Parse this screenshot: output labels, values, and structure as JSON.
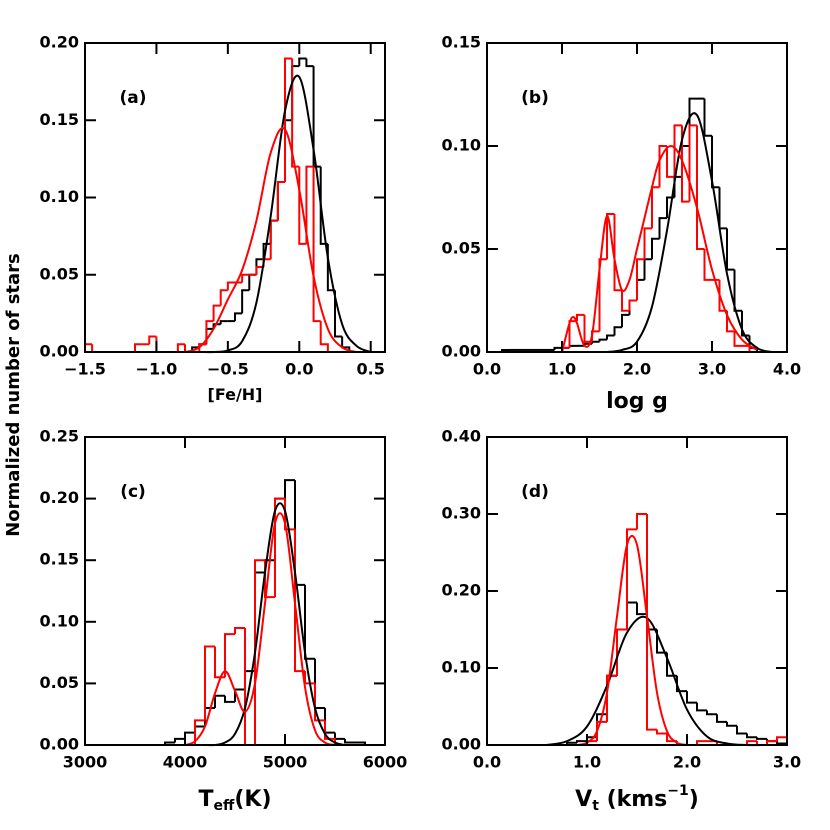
{
  "ylabel": "Normalized number of stars",
  "chart_data": [
    {
      "type": "histogram",
      "annotation": "(a)",
      "xlabel": [
        {
          "text": "[Fe/H]"
        }
      ],
      "xlim": [
        -1.5,
        0.6
      ],
      "ylim": [
        0,
        0.2
      ],
      "xticks": [
        {
          "value": -1.5,
          "label": "−1.5"
        },
        {
          "value": -1,
          "label": "−1.0"
        },
        {
          "value": -0.5,
          "label": "−0.5"
        },
        {
          "value": 0,
          "label": "0.0"
        },
        0.5
      ],
      "yticks": [
        {
          "value": 0,
          "label": "0.00"
        },
        0.05,
        {
          "value": 0.1,
          "label": "0.10"
        },
        0.15,
        {
          "value": 0.2,
          "label": "0.20"
        }
      ],
      "histograms": [
        {
          "color": "#000000",
          "bins": [
            -0.75,
            -0.7,
            -0.65,
            -0.6,
            -0.55,
            -0.5,
            -0.45,
            -0.4,
            -0.35,
            -0.3,
            -0.25,
            -0.2,
            -0.15,
            -0.1,
            -0.05,
            0,
            0.05,
            0.1,
            0.15,
            0.2,
            0.25,
            0.3,
            0.35
          ],
          "values": [
            0.003,
            0.005,
            0.015,
            0.018,
            0.02,
            0.02,
            0.025,
            0.04,
            0.05,
            0.06,
            0.07,
            0.085,
            0.11,
            0.15,
            0.185,
            0.19,
            0.185,
            0.12,
            0.07,
            0.04,
            0.01,
            0.003
          ]
        },
        {
          "color": "#ff0000",
          "bins": [
            -1.5,
            -1.45,
            -1.4,
            -1.35,
            -1.3,
            -1.25,
            -1.2,
            -1.15,
            -1.1,
            -1.05,
            -1,
            -0.95,
            -0.9,
            -0.85,
            -0.8,
            -0.75,
            -0.7,
            -0.65,
            -0.6,
            -0.55,
            -0.5,
            -0.45,
            -0.4,
            -0.35,
            -0.3,
            -0.25,
            -0.2,
            -0.15,
            -0.1,
            -0.05,
            0,
            0.05,
            0.1,
            0.15,
            0.2
          ],
          "values": [
            0.005,
            0,
            0,
            0,
            0,
            0,
            0,
            0.005,
            0.005,
            0.01,
            0,
            0,
            0,
            0.005,
            0,
            0,
            0.005,
            0.02,
            0.03,
            0.04,
            0.045,
            0.045,
            0.05,
            0.05,
            0.055,
            0.06,
            0.085,
            0.11,
            0.19,
            0.12,
            0.07,
            0.12,
            0.02,
            0.005
          ]
        }
      ],
      "curves": [
        {
          "color": "#000000",
          "x": [
            -0.8,
            -0.7,
            -0.6,
            -0.5,
            -0.4,
            -0.3,
            -0.2,
            -0.1,
            0,
            0.1,
            0.2,
            0.3,
            0.4,
            0.5
          ],
          "values": [
            0,
            0,
            0,
            0.001,
            0.007,
            0.032,
            0.088,
            0.156,
            0.178,
            0.131,
            0.061,
            0.018,
            0.004,
            0
          ]
        },
        {
          "color": "#ff0000",
          "x": [
            -0.8,
            -0.7,
            -0.6,
            -0.5,
            -0.4,
            -0.3,
            -0.2,
            -0.1,
            0,
            0.1,
            0.2,
            0.3,
            0.4
          ],
          "values": [
            0,
            0.003,
            0.015,
            0.034,
            0.053,
            0.085,
            0.129,
            0.144,
            0.105,
            0.049,
            0.015,
            0.003,
            0
          ]
        }
      ]
    },
    {
      "type": "histogram",
      "annotation": "(b)",
      "xlabel": [
        {
          "text": "log g"
        }
      ],
      "xlim": [
        0,
        4
      ],
      "ylim": [
        0,
        0.15
      ],
      "xticks": [
        {
          "value": 0,
          "label": "0.0"
        },
        {
          "value": 1,
          "label": "1.0"
        },
        {
          "value": 2,
          "label": "2.0"
        },
        {
          "value": 3,
          "label": "3.0"
        },
        {
          "value": 4,
          "label": "4.0"
        }
      ],
      "yticks": [
        {
          "value": 0,
          "label": "0.00"
        },
        0.05,
        {
          "value": 0.1,
          "label": "0.10"
        },
        0.15
      ],
      "histograms": [
        {
          "color": "#000000",
          "bins": [
            0.2,
            0.3,
            0.4,
            0.5,
            0.6,
            0.7,
            0.8,
            0.9,
            1,
            1.1,
            1.2,
            1.3,
            1.4,
            1.5,
            1.6,
            1.7,
            1.8,
            1.9,
            2,
            2.1,
            2.2,
            2.3,
            2.4,
            2.5,
            2.6,
            2.7,
            2.8,
            2.9,
            3,
            3.1,
            3.2,
            3.3,
            3.4,
            3.5,
            3.6
          ],
          "values": [
            0.001,
            0.001,
            0.001,
            0.001,
            0.001,
            0.001,
            0.001,
            0.002,
            0.002,
            0.003,
            0.003,
            0.004,
            0.005,
            0.006,
            0.008,
            0.012,
            0.018,
            0.025,
            0.035,
            0.045,
            0.055,
            0.065,
            0.075,
            0.085,
            0.1,
            0.123,
            0.123,
            0.105,
            0.08,
            0.06,
            0.04,
            0.02,
            0.008,
            0.002
          ]
        },
        {
          "color": "#ff0000",
          "bins": [
            1,
            1.1,
            1.2,
            1.3,
            1.4,
            1.5,
            1.6,
            1.7,
            1.8,
            1.9,
            2,
            2.1,
            2.2,
            2.3,
            2.4,
            2.5,
            2.6,
            2.7,
            2.8,
            2.9,
            3,
            3.1,
            3.2,
            3.3,
            3.4,
            3.5
          ],
          "values": [
            0.002,
            0.015,
            0.018,
            0.005,
            0.01,
            0.045,
            0.067,
            0.03,
            0.02,
            0.025,
            0.045,
            0.06,
            0.08,
            0.1,
            0.085,
            0.11,
            0.073,
            0.11,
            0.05,
            0.035,
            0.035,
            0.02,
            0.01,
            0.003,
            0.003
          ]
        }
      ],
      "curves": [
        {
          "color": "#000000",
          "x": [
            1.6,
            1.8,
            2,
            2.2,
            2.4,
            2.6,
            2.8,
            3,
            3.2,
            3.4,
            3.6,
            3.8
          ],
          "values": [
            0,
            0.001,
            0.005,
            0.022,
            0.059,
            0.103,
            0.115,
            0.083,
            0.038,
            0.011,
            0.002,
            0
          ]
        },
        {
          "color": "#ff0000",
          "x": [
            1,
            1.1,
            1.15,
            1.2,
            1.3,
            1.4,
            1.5,
            1.6,
            1.7,
            1.8,
            1.9,
            2,
            2.1,
            2.2,
            2.3,
            2.45,
            2.6,
            2.8,
            3,
            3.2,
            3.4,
            3.6
          ],
          "values": [
            0,
            0.014,
            0.017,
            0.014,
            0.003,
            0.008,
            0.04,
            0.066,
            0.045,
            0.03,
            0.035,
            0.05,
            0.065,
            0.08,
            0.093,
            0.1,
            0.093,
            0.07,
            0.04,
            0.018,
            0.006,
            0.001
          ]
        }
      ]
    },
    {
      "type": "histogram",
      "annotation": "(c)",
      "xlabel": [
        {
          "text": "T"
        },
        {
          "text": "eff",
          "shift": "sub"
        },
        {
          "text": "(K)"
        }
      ],
      "xlim": [
        3000,
        6000
      ],
      "ylim": [
        0,
        0.25
      ],
      "xticks": [
        3000,
        4000,
        5000,
        6000
      ],
      "yticks": [
        {
          "value": 0,
          "label": "0.00"
        },
        0.05,
        {
          "value": 0.1,
          "label": "0.10"
        },
        0.15,
        {
          "value": 0.2,
          "label": "0.20"
        },
        0.25
      ],
      "histograms": [
        {
          "color": "#000000",
          "bins": [
            3800,
            3900,
            4000,
            4100,
            4200,
            4300,
            4400,
            4500,
            4600,
            4700,
            4800,
            4900,
            5000,
            5100,
            5200,
            5300,
            5400,
            5500,
            5600,
            5700,
            5800
          ],
          "values": [
            0.002,
            0.005,
            0.01,
            0.015,
            0.03,
            0.04,
            0.035,
            0.045,
            0.06,
            0.14,
            0.15,
            0.2,
            0.215,
            0.13,
            0.07,
            0.03,
            0.01,
            0.005,
            0.002,
            0.002
          ]
        },
        {
          "color": "#ff0000",
          "bins": [
            4100,
            4200,
            4300,
            4400,
            4500,
            4600,
            4700,
            4800,
            4900,
            5000,
            5100,
            5200,
            5300,
            5400,
            5500
          ],
          "values": [
            0.02,
            0.08,
            0.055,
            0.09,
            0.095,
            0,
            0.15,
            0.12,
            0.2,
            0.175,
            0.06,
            0.05,
            0.02,
            0.005
          ]
        }
      ],
      "curves": [
        {
          "color": "#000000",
          "x": [
            4200,
            4300,
            4400,
            4500,
            4600,
            4700,
            4800,
            4900,
            5000,
            5100,
            5200,
            5300,
            5400,
            5500,
            5600
          ],
          "values": [
            0,
            0,
            0.002,
            0.009,
            0.03,
            0.075,
            0.14,
            0.19,
            0.19,
            0.14,
            0.075,
            0.03,
            0.009,
            0.002,
            0
          ]
        },
        {
          "color": "#ff0000",
          "x": [
            4000,
            4100,
            4200,
            4300,
            4400,
            4500,
            4600,
            4700,
            4800,
            4900,
            5000,
            5100,
            5200,
            5300,
            5400,
            5500
          ],
          "values": [
            0,
            0.003,
            0.015,
            0.042,
            0.06,
            0.044,
            0.027,
            0.05,
            0.115,
            0.18,
            0.18,
            0.115,
            0.047,
            0.012,
            0.002,
            0
          ]
        }
      ]
    },
    {
      "type": "histogram",
      "annotation": "(d)",
      "xlabel": [
        {
          "text": "V"
        },
        {
          "text": "t",
          "shift": "sub"
        },
        {
          "text": " (kms"
        },
        {
          "text": "−1",
          "shift": "sup"
        },
        {
          "text": ")"
        }
      ],
      "xlim": [
        0,
        3
      ],
      "ylim": [
        0,
        0.4
      ],
      "xticks": [
        {
          "value": 0,
          "label": "0.0"
        },
        {
          "value": 1,
          "label": "1.0"
        },
        {
          "value": 2,
          "label": "2.0"
        },
        {
          "value": 3,
          "label": "3.0"
        }
      ],
      "yticks": [
        {
          "value": 0,
          "label": "0.00"
        },
        {
          "value": 0.1,
          "label": "0.10"
        },
        {
          "value": 0.2,
          "label": "0.20"
        },
        {
          "value": 0.3,
          "label": "0.30"
        },
        {
          "value": 0.4,
          "label": "0.40"
        }
      ],
      "histograms": [
        {
          "color": "#000000",
          "bins": [
            0.8,
            0.9,
            1,
            1.1,
            1.2,
            1.3,
            1.4,
            1.5,
            1.6,
            1.7,
            1.8,
            1.9,
            2,
            2.1,
            2.2,
            2.3,
            2.4,
            2.5,
            2.6,
            2.7,
            2.8,
            2.9,
            3
          ],
          "values": [
            0.003,
            0.005,
            0.01,
            0.04,
            0.09,
            0.15,
            0.185,
            0.17,
            0.15,
            0.12,
            0.09,
            0.07,
            0.055,
            0.045,
            0.04,
            0.03,
            0.025,
            0.015,
            0.01,
            0.008,
            0.005,
            0.002
          ]
        },
        {
          "color": "#ff0000",
          "bins": [
            1,
            1.1,
            1.2,
            1.3,
            1.4,
            1.5,
            1.6,
            1.7,
            1.8,
            1.9,
            2,
            2.1,
            2.2,
            2.3,
            2.4,
            2.5,
            2.6,
            2.7,
            2.8,
            2.9,
            3
          ],
          "values": [
            0.005,
            0.03,
            0.09,
            0.15,
            0.28,
            0.3,
            0.02,
            0.015,
            0.005,
            0,
            0,
            0.005,
            0.005,
            0,
            0,
            0,
            0.005,
            0,
            0.005,
            0.01
          ]
        }
      ],
      "curves": [
        {
          "color": "#000000",
          "x": [
            0.6,
            0.8,
            1,
            1.2,
            1.4,
            1.6,
            1.8,
            2,
            2.2,
            2.4,
            2.6,
            2.8
          ],
          "values": [
            0,
            0.005,
            0.024,
            0.077,
            0.146,
            0.165,
            0.113,
            0.046,
            0.011,
            0.002,
            0,
            0
          ]
        },
        {
          "color": "#ff0000",
          "x": [
            0.9,
            1,
            1.1,
            1.2,
            1.3,
            1.4,
            1.5,
            1.6,
            1.7,
            1.8,
            1.9,
            2
          ],
          "values": [
            0,
            0.003,
            0.018,
            0.068,
            0.167,
            0.26,
            0.26,
            0.167,
            0.068,
            0.018,
            0.003,
            0
          ]
        }
      ]
    }
  ]
}
